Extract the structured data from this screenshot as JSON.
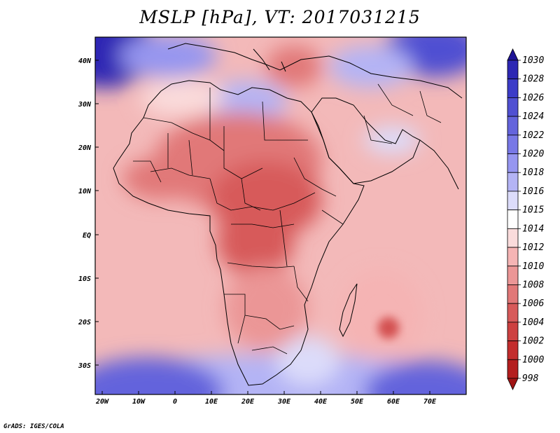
{
  "map": {
    "title": "MSLP [hPa], VT: 2017031215",
    "lat_labels": [
      "40N",
      "30N",
      "20N",
      "10N",
      "EQ",
      "10S",
      "20S",
      "30S"
    ],
    "lon_labels": [
      "20W",
      "10W",
      "0",
      "10E",
      "20E",
      "30E",
      "40E",
      "50E",
      "60E",
      "70E"
    ],
    "credit": "GrADS: IGES/COLA"
  },
  "colorbar": {
    "levels": [
      "1030",
      "1028",
      "1026",
      "1024",
      "1022",
      "1020",
      "1018",
      "1016",
      "1015",
      "1014",
      "1012",
      "1010",
      "1008",
      "1006",
      "1004",
      "1002",
      "1000",
      "998"
    ],
    "colors": [
      "#1e1496",
      "#2d28b4",
      "#3c3cc8",
      "#5050d2",
      "#6464dc",
      "#7878e6",
      "#9696f0",
      "#b4b4f5",
      "#dcdcfa",
      "#ffffff",
      "#fadcdc",
      "#f5b4b4",
      "#eb9696",
      "#e17878",
      "#d75a5a",
      "#cd4141",
      "#c32d2d",
      "#b41e1e",
      "#a01414"
    ]
  }
}
